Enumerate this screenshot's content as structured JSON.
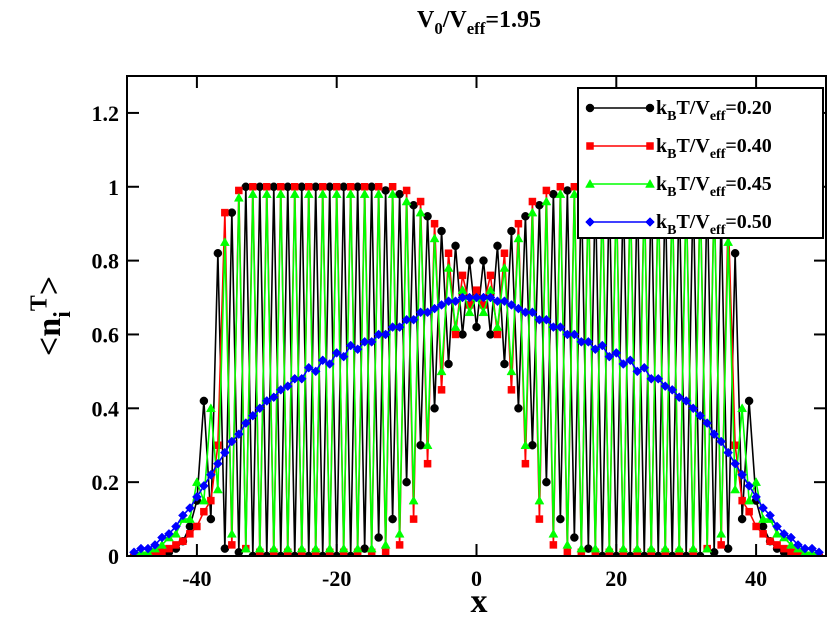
{
  "chart_data": {
    "type": "line",
    "title": "V_{0}/V_{eff}=1.95",
    "x_label": "x",
    "y_label": "<n_{i}^{T}>",
    "xlim": [
      -50,
      50
    ],
    "xticks": [
      -40,
      -20,
      0,
      20,
      40
    ],
    "ylim": [
      0,
      1.3
    ],
    "yticks": [
      0,
      0.2,
      0.4,
      0.6,
      0.8,
      1,
      1.2
    ],
    "legend": "upper right",
    "x": [
      -49,
      -48,
      -47,
      -46,
      -45,
      -44,
      -43,
      -42,
      -41,
      -40,
      -39,
      -38,
      -37,
      -36,
      -35,
      -34,
      -33,
      -32,
      -31,
      -30,
      -29,
      -28,
      -27,
      -26,
      -25,
      -24,
      -23,
      -22,
      -21,
      -20,
      -19,
      -18,
      -17,
      -16,
      -15,
      -14,
      -13,
      -12,
      -11,
      -10,
      -9,
      -8,
      -7,
      -6,
      -5,
      -4,
      -3,
      -2,
      -1,
      0,
      1,
      2,
      3,
      4,
      5,
      6,
      7,
      8,
      9,
      10,
      11,
      12,
      13,
      14,
      15,
      16,
      17,
      18,
      19,
      20,
      21,
      22,
      23,
      24,
      25,
      26,
      27,
      28,
      29,
      30,
      31,
      32,
      33,
      34,
      35,
      36,
      37,
      38,
      39,
      40,
      41,
      42,
      43,
      44,
      45,
      46,
      47,
      48,
      49
    ],
    "series": [
      {
        "name": "k_{B}T/V_{eff}=0.20",
        "color": "#000000",
        "marker": "circle",
        "values": [
          0,
          0,
          0,
          0,
          0.01,
          0.01,
          0.02,
          0.04,
          0.08,
          0.15,
          0.42,
          0.1,
          0.82,
          0.02,
          0.93,
          0.01,
          1,
          0,
          1,
          0,
          1,
          0,
          1,
          0,
          1,
          0,
          1,
          0,
          1,
          0,
          1,
          0,
          1,
          0.02,
          1,
          0.05,
          0.99,
          0.1,
          0.98,
          0.2,
          0.95,
          0.3,
          0.92,
          0.4,
          0.88,
          0.52,
          0.84,
          0.6,
          0.8,
          0.62,
          0.8,
          0.6,
          0.84,
          0.52,
          0.88,
          0.4,
          0.92,
          0.3,
          0.95,
          0.2,
          0.98,
          0.1,
          0.99,
          0.05,
          1,
          0.02,
          1,
          0,
          1,
          0,
          1,
          0,
          1,
          0,
          1,
          0,
          1,
          0,
          1,
          0,
          1,
          0,
          1,
          0.01,
          0.93,
          0.02,
          0.82,
          0.1,
          0.42,
          0.15,
          0.08,
          0.04,
          0.02,
          0.01,
          0.01,
          0,
          0,
          0,
          0
        ]
      },
      {
        "name": "k_{B}T/V_{eff}=0.40",
        "color": "#ff0000",
        "marker": "square",
        "values": [
          0,
          0,
          0,
          0.01,
          0.01,
          0.02,
          0.03,
          0.04,
          0.06,
          0.08,
          0.12,
          0.15,
          0.3,
          0.93,
          0.03,
          0.99,
          0.02,
          1,
          0.01,
          1,
          0.01,
          1,
          0.01,
          1,
          0.01,
          1,
          0.01,
          1,
          0.01,
          1,
          0.01,
          1,
          0.01,
          1,
          0.01,
          1,
          0.01,
          1,
          0.03,
          0.99,
          0.1,
          0.96,
          0.25,
          0.9,
          0.45,
          0.82,
          0.6,
          0.76,
          0.68,
          0.72,
          0.68,
          0.76,
          0.6,
          0.82,
          0.45,
          0.9,
          0.25,
          0.96,
          0.1,
          0.99,
          0.03,
          1,
          0.01,
          1,
          0.01,
          1,
          0.01,
          1,
          0.01,
          1,
          0.01,
          1,
          0.01,
          1,
          0.01,
          1,
          0.01,
          1,
          0.01,
          1,
          0.01,
          1,
          0.02,
          0.99,
          0.03,
          0.93,
          0.3,
          0.15,
          0.12,
          0.08,
          0.06,
          0.04,
          0.03,
          0.02,
          0.01,
          0.01,
          0,
          0,
          0
        ]
      },
      {
        "name": "k_{B}T/V_{eff}=0.45",
        "color": "#00ff00",
        "marker": "triangle",
        "values": [
          0,
          0.01,
          0.01,
          0.02,
          0.03,
          0.05,
          0.06,
          0.1,
          0.1,
          0.2,
          0.15,
          0.4,
          0.18,
          0.85,
          0.06,
          0.97,
          0.02,
          0.98,
          0.02,
          0.98,
          0.02,
          0.98,
          0.02,
          0.98,
          0.02,
          0.98,
          0.02,
          0.98,
          0.02,
          0.98,
          0.02,
          0.98,
          0.02,
          0.98,
          0.02,
          0.98,
          0.03,
          0.98,
          0.06,
          0.96,
          0.15,
          0.93,
          0.3,
          0.86,
          0.5,
          0.78,
          0.62,
          0.72,
          0.66,
          0.7,
          0.66,
          0.72,
          0.62,
          0.78,
          0.5,
          0.86,
          0.3,
          0.93,
          0.15,
          0.96,
          0.06,
          0.98,
          0.03,
          0.98,
          0.02,
          0.98,
          0.02,
          0.98,
          0.02,
          0.98,
          0.02,
          0.98,
          0.02,
          0.98,
          0.02,
          0.98,
          0.02,
          0.98,
          0.02,
          0.98,
          0.02,
          0.98,
          0.02,
          0.97,
          0.06,
          0.85,
          0.18,
          0.4,
          0.15,
          0.2,
          0.1,
          0.1,
          0.06,
          0.05,
          0.03,
          0.02,
          0.01,
          0.01,
          0
        ]
      },
      {
        "name": "k_{B}T/V_{eff}=0.50",
        "color": "#0000ff",
        "marker": "diamond",
        "values": [
          0.01,
          0.02,
          0.02,
          0.03,
          0.05,
          0.06,
          0.08,
          0.11,
          0.13,
          0.16,
          0.19,
          0.22,
          0.25,
          0.28,
          0.31,
          0.33,
          0.36,
          0.38,
          0.4,
          0.42,
          0.43,
          0.45,
          0.46,
          0.48,
          0.48,
          0.51,
          0.5,
          0.53,
          0.52,
          0.55,
          0.54,
          0.57,
          0.56,
          0.58,
          0.58,
          0.6,
          0.6,
          0.62,
          0.62,
          0.64,
          0.64,
          0.66,
          0.66,
          0.67,
          0.68,
          0.69,
          0.69,
          0.7,
          0.7,
          0.7,
          0.7,
          0.7,
          0.69,
          0.69,
          0.68,
          0.67,
          0.66,
          0.66,
          0.64,
          0.64,
          0.62,
          0.62,
          0.6,
          0.6,
          0.58,
          0.58,
          0.56,
          0.57,
          0.54,
          0.55,
          0.52,
          0.53,
          0.5,
          0.51,
          0.48,
          0.48,
          0.46,
          0.45,
          0.43,
          0.42,
          0.4,
          0.38,
          0.36,
          0.33,
          0.31,
          0.28,
          0.25,
          0.22,
          0.19,
          0.16,
          0.13,
          0.11,
          0.08,
          0.06,
          0.05,
          0.03,
          0.02,
          0.02,
          0.01
        ]
      }
    ]
  }
}
